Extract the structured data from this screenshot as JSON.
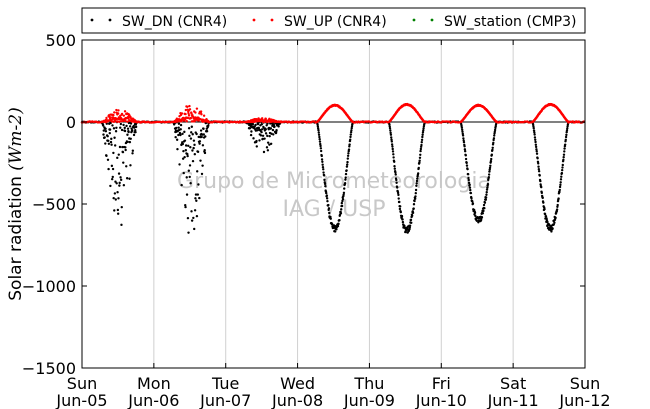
{
  "chart_data": {
    "type": "scatter",
    "title": "",
    "ylabel": "Solar radiation ",
    "ylabel_math": "(Wm-2)",
    "ylim": [
      -1500,
      500
    ],
    "yticks": [
      500,
      0,
      -500,
      -1000,
      -1500
    ],
    "ytick_labels": [
      "500",
      "0",
      "−500",
      "−1000",
      "−1500"
    ],
    "xlim": [
      "2011-06-05",
      "2011-06-12"
    ],
    "xticks": [
      {
        "day": "Sun",
        "date": "Jun-05"
      },
      {
        "day": "Mon",
        "date": "Jun-06"
      },
      {
        "day": "Tue",
        "date": "Jun-07"
      },
      {
        "day": "Wed",
        "date": "Jun-08"
      },
      {
        "day": "Thu",
        "date": "Jun-09"
      },
      {
        "day": "Fri",
        "date": "Jun-10"
      },
      {
        "day": "Sat",
        "date": "Jun-11"
      },
      {
        "day": "Sun",
        "date": "Jun-12"
      }
    ],
    "grid": "vertical",
    "legend_position": "top",
    "watermark": [
      "Grupo de Micrometeorologia",
      "IAG / USP"
    ],
    "series": [
      {
        "name": "SW_DN (CNR4)",
        "color": "#000000",
        "days": [
          {
            "day": "Jun-05",
            "peak": -650,
            "cloudy": true
          },
          {
            "day": "Jun-06",
            "peak": -700,
            "cloudy": true
          },
          {
            "day": "Jun-07",
            "peak": -200,
            "cloudy": true
          },
          {
            "day": "Jun-08",
            "peak": -670,
            "cloudy": false
          },
          {
            "day": "Jun-09",
            "peak": -680,
            "cloudy": false
          },
          {
            "day": "Jun-10",
            "peak": -620,
            "cloudy": false
          },
          {
            "day": "Jun-11",
            "peak": -670,
            "cloudy": false
          }
        ]
      },
      {
        "name": "SW_UP (CNR4)",
        "color": "#ff0000",
        "days": [
          {
            "day": "Jun-05",
            "peak": 80,
            "cloudy": true
          },
          {
            "day": "Jun-06",
            "peak": 110,
            "cloudy": true
          },
          {
            "day": "Jun-07",
            "peak": 25,
            "cloudy": true
          },
          {
            "day": "Jun-08",
            "peak": 105,
            "cloudy": false
          },
          {
            "day": "Jun-09",
            "peak": 110,
            "cloudy": false
          },
          {
            "day": "Jun-10",
            "peak": 105,
            "cloudy": false
          },
          {
            "day": "Jun-11",
            "peak": 110,
            "cloudy": false
          }
        ]
      },
      {
        "name": "SW_station (CMP3)",
        "color": "#008000",
        "days": []
      }
    ]
  }
}
